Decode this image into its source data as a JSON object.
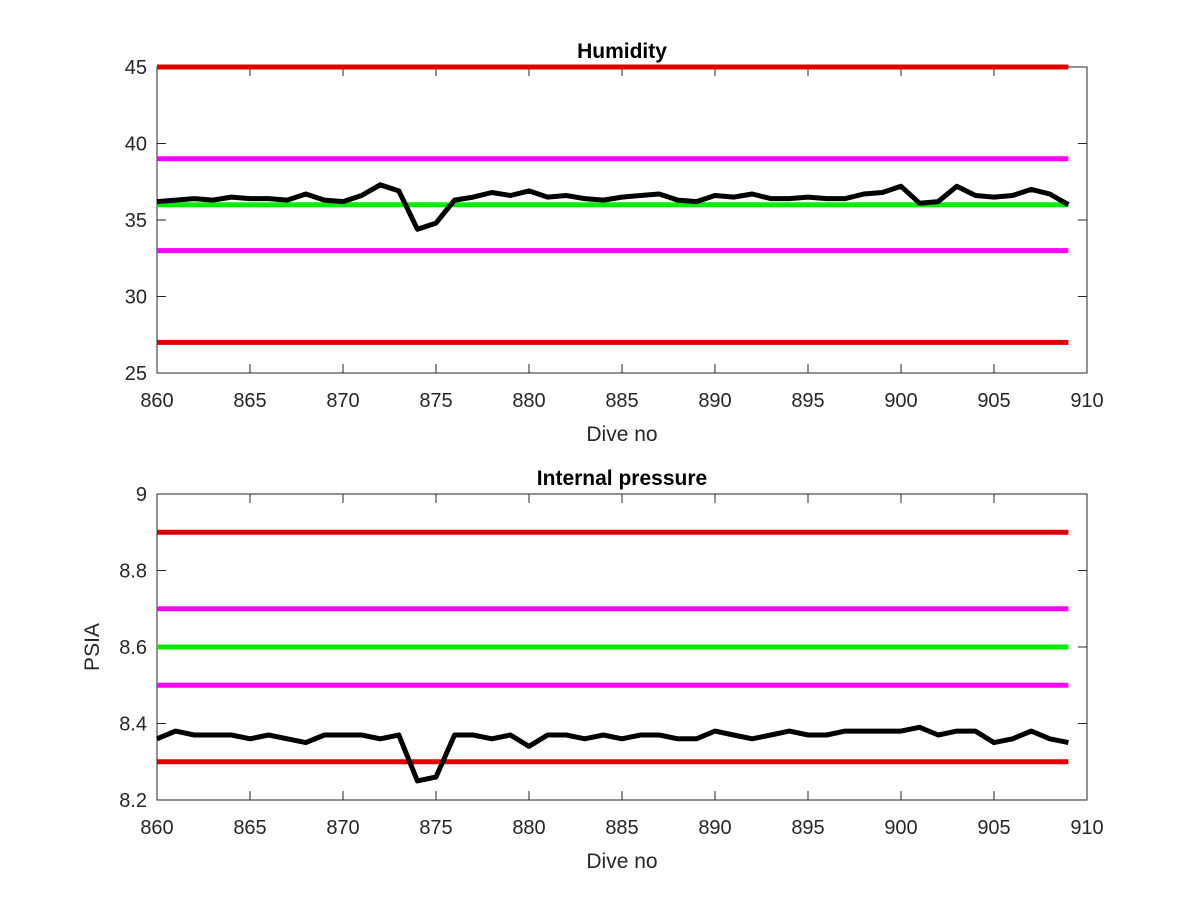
{
  "chart_data": [
    {
      "type": "line",
      "title": "Humidity",
      "xlabel": "Dive no",
      "ylabel": "",
      "xlim": [
        860,
        910
      ],
      "ylim": [
        25,
        45
      ],
      "xticks": [
        860,
        865,
        870,
        875,
        880,
        885,
        890,
        895,
        900,
        905,
        910
      ],
      "xtick_labels": [
        "860",
        "865",
        "870",
        "875",
        "880",
        "885",
        "890",
        "895",
        "900",
        "905",
        "910"
      ],
      "yticks": [
        25,
        30,
        35,
        40,
        45
      ],
      "ytick_labels": [
        "25",
        "30",
        "35",
        "40",
        "45"
      ],
      "grid": false,
      "threshold_lines": [
        {
          "value": 45,
          "color": "#e00000"
        },
        {
          "value": 39,
          "color": "#ff00ff"
        },
        {
          "value": 36,
          "color": "#00ee00"
        },
        {
          "value": 33,
          "color": "#ff00ff"
        },
        {
          "value": 27,
          "color": "#e00000"
        }
      ],
      "series": [
        {
          "color": "#000000",
          "x": [
            860,
            861,
            862,
            863,
            864,
            865,
            866,
            867,
            868,
            869,
            870,
            871,
            872,
            873,
            874,
            875,
            876,
            877,
            878,
            879,
            880,
            881,
            882,
            883,
            884,
            885,
            886,
            887,
            888,
            889,
            890,
            891,
            892,
            893,
            894,
            895,
            896,
            897,
            898,
            899,
            900,
            901,
            902,
            903,
            904,
            905,
            906,
            907,
            908,
            909
          ],
          "values": [
            36.2,
            36.3,
            36.4,
            36.3,
            36.5,
            36.4,
            36.4,
            36.3,
            36.7,
            36.3,
            36.2,
            36.6,
            37.3,
            36.9,
            34.4,
            34.8,
            36.3,
            36.5,
            36.8,
            36.6,
            36.9,
            36.5,
            36.6,
            36.4,
            36.3,
            36.5,
            36.6,
            36.7,
            36.3,
            36.2,
            36.6,
            36.5,
            36.7,
            36.4,
            36.4,
            36.5,
            36.4,
            36.4,
            36.7,
            36.8,
            37.2,
            36.1,
            36.2,
            37.2,
            36.6,
            36.5,
            36.6,
            37.0,
            36.7,
            36.0
          ]
        }
      ]
    },
    {
      "type": "line",
      "title": "Internal pressure",
      "xlabel": "Dive no",
      "ylabel": "PSIA",
      "xlim": [
        860,
        910
      ],
      "ylim": [
        8.2,
        9
      ],
      "xticks": [
        860,
        865,
        870,
        875,
        880,
        885,
        890,
        895,
        900,
        905,
        910
      ],
      "xtick_labels": [
        "860",
        "865",
        "870",
        "875",
        "880",
        "885",
        "890",
        "895",
        "900",
        "905",
        "910"
      ],
      "yticks": [
        8.2,
        8.4,
        8.6,
        8.8,
        9
      ],
      "ytick_labels": [
        "8.2",
        "8.4",
        "8.6",
        "8.8",
        "9"
      ],
      "grid": false,
      "threshold_lines": [
        {
          "value": 8.9,
          "color": "#e00000"
        },
        {
          "value": 8.7,
          "color": "#ff00ff"
        },
        {
          "value": 8.6,
          "color": "#00ee00"
        },
        {
          "value": 8.5,
          "color": "#ff00ff"
        },
        {
          "value": 8.3,
          "color": "#e00000"
        }
      ],
      "series": [
        {
          "color": "#000000",
          "x": [
            860,
            861,
            862,
            863,
            864,
            865,
            866,
            867,
            868,
            869,
            870,
            871,
            872,
            873,
            874,
            875,
            876,
            877,
            878,
            879,
            880,
            881,
            882,
            883,
            884,
            885,
            886,
            887,
            888,
            889,
            890,
            891,
            892,
            893,
            894,
            895,
            896,
            897,
            898,
            899,
            900,
            901,
            902,
            903,
            904,
            905,
            906,
            907,
            908,
            909
          ],
          "values": [
            8.36,
            8.38,
            8.37,
            8.37,
            8.37,
            8.36,
            8.37,
            8.36,
            8.35,
            8.37,
            8.37,
            8.37,
            8.36,
            8.37,
            8.25,
            8.26,
            8.37,
            8.37,
            8.36,
            8.37,
            8.34,
            8.37,
            8.37,
            8.36,
            8.37,
            8.36,
            8.37,
            8.37,
            8.36,
            8.36,
            8.38,
            8.37,
            8.36,
            8.37,
            8.38,
            8.37,
            8.37,
            8.38,
            8.38,
            8.38,
            8.38,
            8.39,
            8.37,
            8.38,
            8.38,
            8.35,
            8.36,
            8.38,
            8.36,
            8.35
          ]
        }
      ]
    }
  ]
}
